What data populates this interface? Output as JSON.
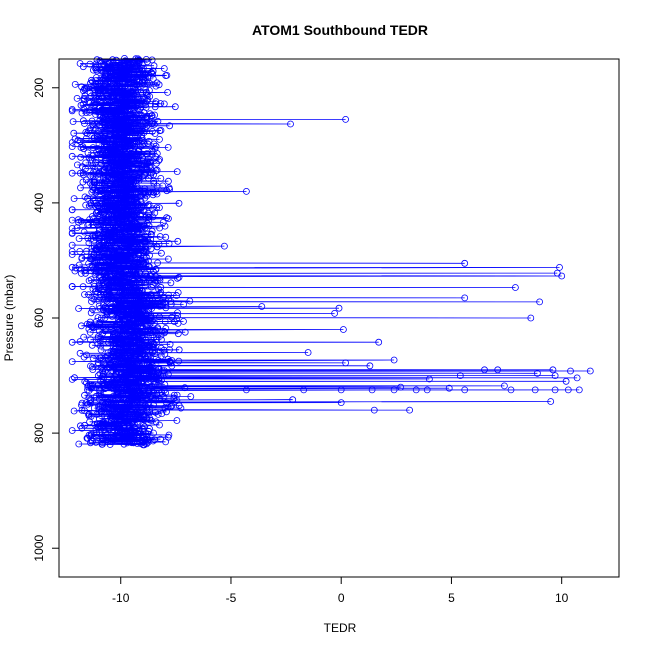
{
  "chart_data": {
    "type": "scatter",
    "title": "ATOM1 Southbound TEDR",
    "xlabel": "TEDR",
    "ylabel": "Pressure (mbar)",
    "xlim": [
      -12.8,
      12.6
    ],
    "ylim": [
      1050,
      150
    ],
    "y_reversed": true,
    "x_ticks": [
      -10,
      -5,
      0,
      5,
      10
    ],
    "x_tick_labels": [
      "-10",
      "-5",
      "0",
      "5",
      "10"
    ],
    "y_ticks": [
      200,
      400,
      600,
      800,
      1000
    ],
    "y_tick_labels": [
      "200",
      "400",
      "600",
      "800",
      "1000"
    ],
    "grid": false,
    "legend": "none",
    "series": [
      {
        "style": "points-and-lines",
        "marker": "open-circle",
        "color": "#0000ff",
        "bulk_cloud": {
          "x_range": [
            -12.2,
            -6.2
          ],
          "y_range": [
            150,
            820
          ],
          "approx_center_x": -10
        },
        "points": [
          {
            "x": 0.2,
            "y": 255
          },
          {
            "x": -2.3,
            "y": 263
          },
          {
            "x": -4.3,
            "y": 380
          },
          {
            "x": -5.3,
            "y": 475
          },
          {
            "x": 5.6,
            "y": 505
          },
          {
            "x": 9.9,
            "y": 512
          },
          {
            "x": 9.8,
            "y": 522
          },
          {
            "x": 10.0,
            "y": 527
          },
          {
            "x": 7.9,
            "y": 547
          },
          {
            "x": 5.6,
            "y": 565
          },
          {
            "x": 9.0,
            "y": 572
          },
          {
            "x": -3.6,
            "y": 580
          },
          {
            "x": -0.1,
            "y": 583
          },
          {
            "x": 8.6,
            "y": 600
          },
          {
            "x": -0.3,
            "y": 592
          },
          {
            "x": 0.1,
            "y": 620
          },
          {
            "x": 1.7,
            "y": 642
          },
          {
            "x": -1.5,
            "y": 660
          },
          {
            "x": 2.4,
            "y": 673
          },
          {
            "x": 0.2,
            "y": 678
          },
          {
            "x": 1.3,
            "y": 683
          },
          {
            "x": 6.5,
            "y": 690
          },
          {
            "x": 7.1,
            "y": 690
          },
          {
            "x": 9.6,
            "y": 690
          },
          {
            "x": 10.4,
            "y": 692
          },
          {
            "x": 11.3,
            "y": 692
          },
          {
            "x": 8.9,
            "y": 696
          },
          {
            "x": 5.4,
            "y": 700
          },
          {
            "x": 9.7,
            "y": 700
          },
          {
            "x": 10.7,
            "y": 704
          },
          {
            "x": 4.0,
            "y": 706
          },
          {
            "x": 10.2,
            "y": 710
          },
          {
            "x": 7.4,
            "y": 718
          },
          {
            "x": 2.7,
            "y": 720
          },
          {
            "x": 4.9,
            "y": 722
          },
          {
            "x": -4.3,
            "y": 725
          },
          {
            "x": -1.7,
            "y": 725
          },
          {
            "x": 0.0,
            "y": 725
          },
          {
            "x": 1.4,
            "y": 725
          },
          {
            "x": 2.4,
            "y": 725
          },
          {
            "x": 3.4,
            "y": 725
          },
          {
            "x": 3.9,
            "y": 725
          },
          {
            "x": 5.6,
            "y": 725
          },
          {
            "x": 7.7,
            "y": 725
          },
          {
            "x": 8.8,
            "y": 725
          },
          {
            "x": 9.7,
            "y": 725
          },
          {
            "x": 10.3,
            "y": 725
          },
          {
            "x": 10.8,
            "y": 725
          },
          {
            "x": -2.2,
            "y": 742
          },
          {
            "x": 9.5,
            "y": 745
          },
          {
            "x": 0.0,
            "y": 747
          },
          {
            "x": 1.5,
            "y": 760
          },
          {
            "x": 3.1,
            "y": 760
          }
        ]
      }
    ]
  }
}
